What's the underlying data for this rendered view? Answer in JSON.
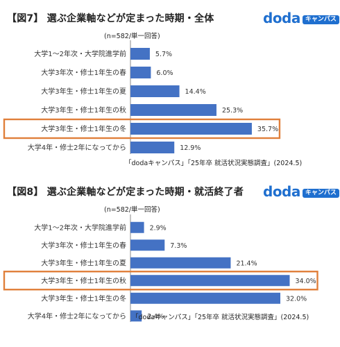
{
  "chart_data": [
    {
      "type": "bar",
      "orientation": "horizontal",
      "title": "【図7】 選ぶ企業軸などが定まった時期・全体",
      "note": "(n=582/単一回答)",
      "source": "「dodaキャンパス」「25年卒 就活状況実態調査」(2024.5)",
      "logo": {
        "word": "doda",
        "badge": "キャンパス"
      },
      "categories": [
        "大学1～2年次・大学院進学前",
        "大学3年次・修士1年生の春",
        "大学3年生・修士1年生の夏",
        "大学3年生・修士1年生の秋",
        "大学3年生・修士1年生の冬",
        "大学4年・修士2年になってから"
      ],
      "values": [
        5.7,
        6.0,
        14.4,
        25.3,
        35.7,
        12.9
      ],
      "value_labels": [
        "5.7%",
        "6.0%",
        "14.4%",
        "25.3%",
        "35.7%",
        "12.9%"
      ],
      "highlighted_category": "大学3年生・修士1年生の冬",
      "bar_color": "#4472c4",
      "highlight_color": "#e07f3a"
    },
    {
      "type": "bar",
      "orientation": "horizontal",
      "title": "【図8】 選ぶ企業軸などが定まった時期・就活終了者",
      "note": "(n=582/単一回答)",
      "source": "「dodaキャンパス」「25年卒 就活状況実態調査」(2024.5)",
      "logo": {
        "word": "doda",
        "badge": "キャンパス"
      },
      "categories": [
        "大学1～2年次・大学院進学前",
        "大学3年次・修士1年生の春",
        "大学3年生・修士1年生の夏",
        "大学3年生・修士1年生の秋",
        "大学3年生・修士1年生の冬",
        "大学4年・修士2年になってから"
      ],
      "values": [
        2.9,
        7.3,
        21.4,
        34.0,
        32.0,
        2.4
      ],
      "value_labels": [
        "2.9%",
        "7.3%",
        "21.4%",
        "34.0%",
        "32.0%",
        "2.4%"
      ],
      "highlighted_category": "大学3年生・修士1年生の秋",
      "bar_color": "#4472c4",
      "highlight_color": "#e07f3a"
    }
  ]
}
